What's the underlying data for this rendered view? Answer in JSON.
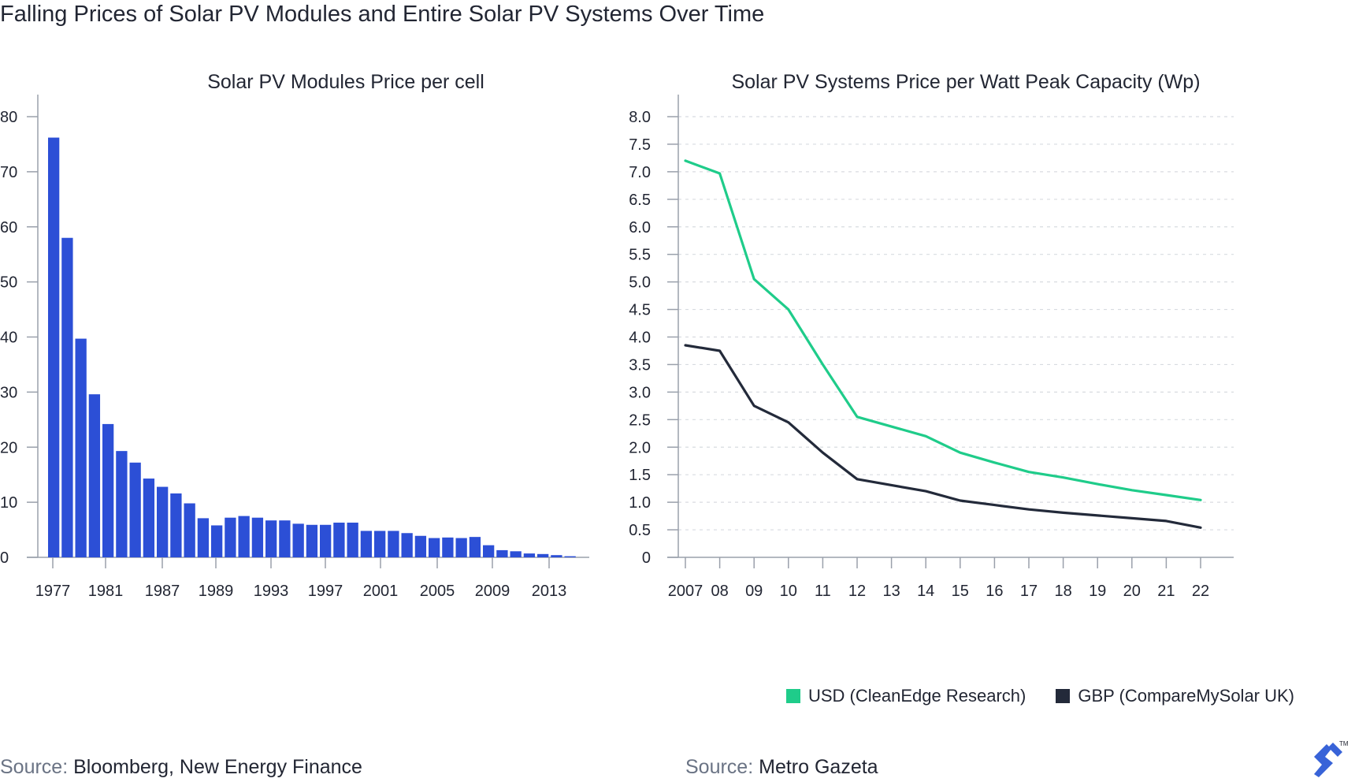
{
  "header": {
    "title": "Falling Prices of Solar PV Modules and Entire Solar PV Systems Over Time"
  },
  "colors": {
    "bar": "#2c4fd6",
    "usd_line": "#1fcc8a",
    "gbp_line": "#232a3a",
    "logo": "#3863d8"
  },
  "chart_data": [
    {
      "type": "bar",
      "title": "Solar PV Modules Price per cell",
      "ylim": [
        0,
        80
      ],
      "y_ticks": [
        "0",
        "10",
        "20",
        "30",
        "40",
        "50",
        "60",
        "70",
        "80"
      ],
      "x_tick_labels": [
        "1977",
        "1981",
        "1987",
        "1989",
        "1993",
        "1997",
        "2001",
        "2005",
        "2009",
        "2013"
      ],
      "values": [
        76.2,
        58.0,
        39.7,
        29.6,
        24.2,
        19.3,
        17.2,
        14.3,
        12.8,
        11.6,
        9.8,
        7.1,
        5.8,
        7.2,
        7.5,
        7.2,
        6.7,
        6.7,
        6.1,
        5.9,
        5.9,
        6.3,
        6.3,
        4.8,
        4.8,
        4.8,
        4.4,
        3.9,
        3.5,
        3.6,
        3.5,
        3.7,
        2.2,
        1.3,
        1.1,
        0.7,
        0.6,
        0.4,
        0.2
      ],
      "grid": false
    },
    {
      "type": "line",
      "title": "Solar PV Systems Price per Watt Peak Capacity (Wp)",
      "ylim": [
        0,
        8
      ],
      "y_ticks": [
        "0",
        "0.5",
        "1.0",
        "1.5",
        "2.0",
        "2.5",
        "3.0",
        "3.5",
        "4.0",
        "4.5",
        "5.0",
        "5.5",
        "6.0",
        "6.5",
        "7.0",
        "7.5",
        "8.0"
      ],
      "x": [
        "2007",
        "08",
        "09",
        "10",
        "11",
        "12",
        "13",
        "14",
        "15",
        "16",
        "17",
        "18",
        "19",
        "20",
        "21",
        "22"
      ],
      "series": [
        {
          "name": "USD (CleanEdge Research)",
          "points": [
            [
              0,
              7.2
            ],
            [
              1,
              6.97
            ],
            [
              2,
              5.05
            ],
            [
              3,
              4.5
            ],
            [
              4,
              3.5
            ],
            [
              5,
              2.55
            ],
            [
              7,
              2.2
            ],
            [
              8,
              1.9
            ],
            [
              9,
              1.72
            ],
            [
              10,
              1.55
            ],
            [
              11,
              1.45
            ],
            [
              12,
              1.33
            ],
            [
              13,
              1.22
            ],
            [
              14,
              1.13
            ],
            [
              15,
              1.04
            ]
          ]
        },
        {
          "name": "GBP (CompareMySolar UK)",
          "points": [
            [
              0,
              3.85
            ],
            [
              1,
              3.75
            ],
            [
              2,
              2.75
            ],
            [
              3,
              2.45
            ],
            [
              4,
              1.9
            ],
            [
              5,
              1.42
            ],
            [
              7,
              1.2
            ],
            [
              8,
              1.03
            ],
            [
              9,
              0.95
            ],
            [
              10,
              0.87
            ],
            [
              11,
              0.81
            ],
            [
              12,
              0.76
            ],
            [
              13,
              0.71
            ],
            [
              14,
              0.66
            ],
            [
              15,
              0.54
            ]
          ]
        }
      ],
      "grid": true,
      "legend_position": "bottom"
    }
  ],
  "sources": {
    "left_label": "Source:",
    "left_value": " Bloomberg, New Energy Finance",
    "right_label": "Source:",
    "right_value": " Metro Gazeta"
  }
}
